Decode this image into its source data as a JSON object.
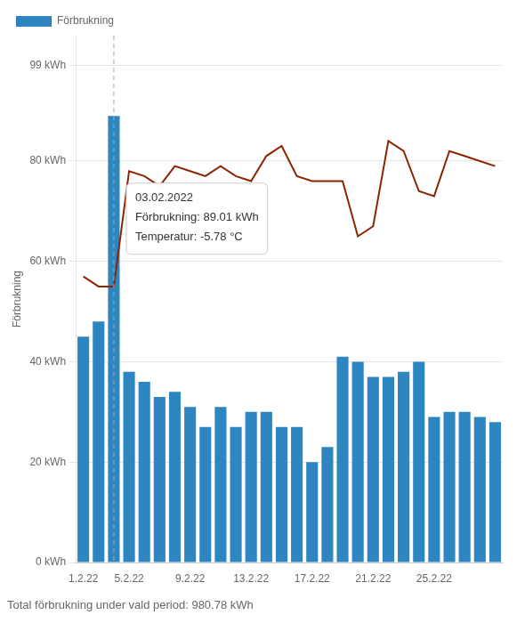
{
  "chart_data": {
    "type": "bar",
    "ylabel": "Förbrukning",
    "categories": [
      "1.2.22",
      null,
      null,
      "5.2.22",
      null,
      null,
      null,
      "9.2.22",
      null,
      null,
      null,
      "13.2.22",
      null,
      null,
      null,
      "17.2.22",
      null,
      null,
      null,
      "21.2.22",
      null,
      null,
      null,
      "25.2.22",
      null,
      null,
      null,
      null
    ],
    "series": [
      {
        "name": "Förbrukning",
        "type": "bar",
        "color": "#2e86c1",
        "values": [
          45,
          48,
          89.01,
          38,
          36,
          33,
          34,
          31,
          27,
          31,
          27,
          30,
          30,
          27,
          27,
          20,
          23,
          41,
          40,
          37,
          37,
          38,
          40,
          29,
          30,
          30,
          29,
          28
        ]
      },
      {
        "type": "line",
        "color": "#8b2500",
        "values": [
          57,
          55,
          55,
          78,
          77,
          75,
          79,
          78,
          77,
          79,
          77,
          76,
          81,
          83,
          77,
          76,
          76,
          76,
          65,
          67,
          84,
          82,
          74,
          73,
          82,
          81,
          80,
          79
        ]
      }
    ],
    "ylim": [
      0,
      105
    ],
    "yticks": [
      {
        "value": 0,
        "label": "0 kWh"
      },
      {
        "value": 20,
        "label": "20 kWh"
      },
      {
        "value": 40,
        "label": "40 kWh"
      },
      {
        "value": 60,
        "label": "60 kWh"
      },
      {
        "value": 80,
        "label": "80 kWh"
      },
      {
        "value": 99,
        "label": "99 kWh"
      }
    ],
    "grid": "y",
    "legend": "upper left",
    "annotations": [
      {
        "x": 2,
        "text": [
          "03.02.2022",
          "Förbrukning: 89.01 kWh",
          "Temperatur: -5.78 °C"
        ]
      }
    ],
    "footer": "Total förbrukning under vald period: 980.78 kWh"
  }
}
